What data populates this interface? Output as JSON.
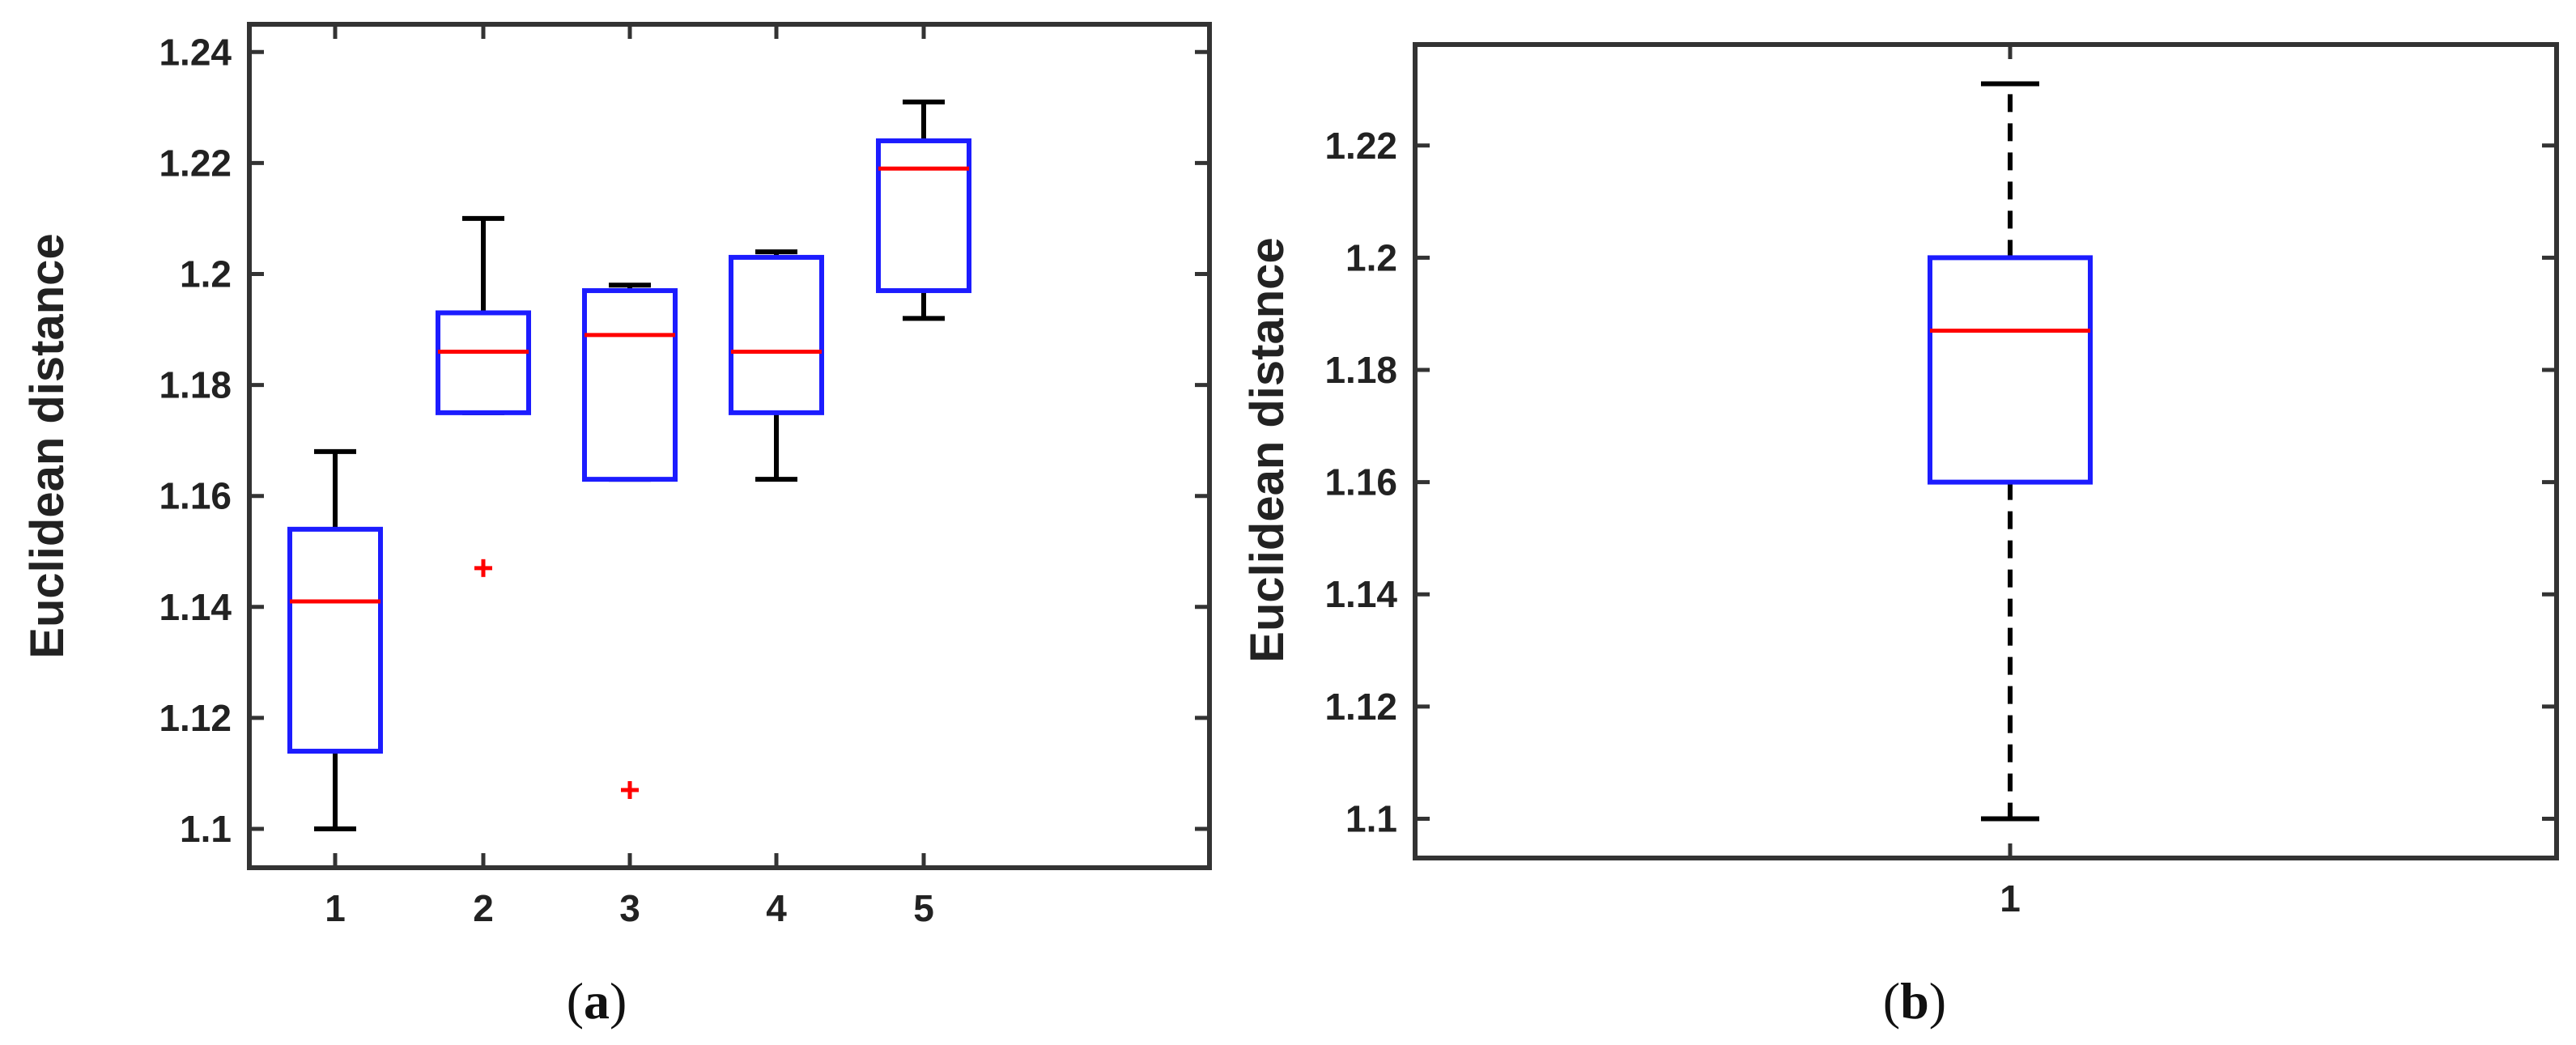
{
  "chart_data": [
    {
      "type": "box",
      "caption_open": "(",
      "caption_letter": "a",
      "caption_close": ")",
      "ylabel": "Euclidean distance",
      "ylim": [
        1.093,
        1.245
      ],
      "yticks": [
        1.1,
        1.12,
        1.14,
        1.16,
        1.18,
        1.2,
        1.22,
        1.24
      ],
      "ytick_labels": [
        "1.1",
        "1.12",
        "1.14",
        "1.16",
        "1.18",
        "1.2",
        "1.22",
        "1.24"
      ],
      "categories": [
        "1",
        "2",
        "3",
        "4",
        "5"
      ],
      "boxes": [
        {
          "whisker_low": 1.1,
          "q1": 1.114,
          "median": 1.141,
          "q3": 1.154,
          "whisker_high": 1.168,
          "outliers": []
        },
        {
          "whisker_low": 1.175,
          "q1": 1.175,
          "median": 1.186,
          "q3": 1.193,
          "whisker_high": 1.21,
          "outliers": [
            1.147
          ]
        },
        {
          "whisker_low": 1.163,
          "q1": 1.163,
          "median": 1.189,
          "q3": 1.197,
          "whisker_high": 1.198,
          "outliers": [
            1.107
          ]
        },
        {
          "whisker_low": 1.163,
          "q1": 1.175,
          "median": 1.186,
          "q3": 1.203,
          "whisker_high": 1.204,
          "outliers": []
        },
        {
          "whisker_low": 1.192,
          "q1": 1.197,
          "median": 1.219,
          "q3": 1.224,
          "whisker_high": 1.231,
          "outliers": []
        }
      ],
      "colors": {
        "box": "#1c1cff",
        "median": "#ff0000",
        "whisker": "#000000",
        "outlier": "#ff0000"
      }
    },
    {
      "type": "box",
      "caption_open": "(",
      "caption_letter": "b",
      "caption_close": ")",
      "ylabel": "Euclidean distance",
      "ylim": [
        1.093,
        1.238
      ],
      "yticks": [
        1.1,
        1.12,
        1.14,
        1.16,
        1.18,
        1.2,
        1.22
      ],
      "ytick_labels": [
        "1.1",
        "1.12",
        "1.14",
        "1.16",
        "1.18",
        "1.2",
        "1.22"
      ],
      "categories": [
        "1"
      ],
      "boxes": [
        {
          "whisker_low": 1.1,
          "q1": 1.16,
          "median": 1.187,
          "q3": 1.2,
          "whisker_high": 1.231,
          "outliers": []
        }
      ],
      "colors": {
        "box": "#1c1cff",
        "median": "#ff0000",
        "whisker": "#000000",
        "outlier": "#ff0000"
      }
    }
  ]
}
